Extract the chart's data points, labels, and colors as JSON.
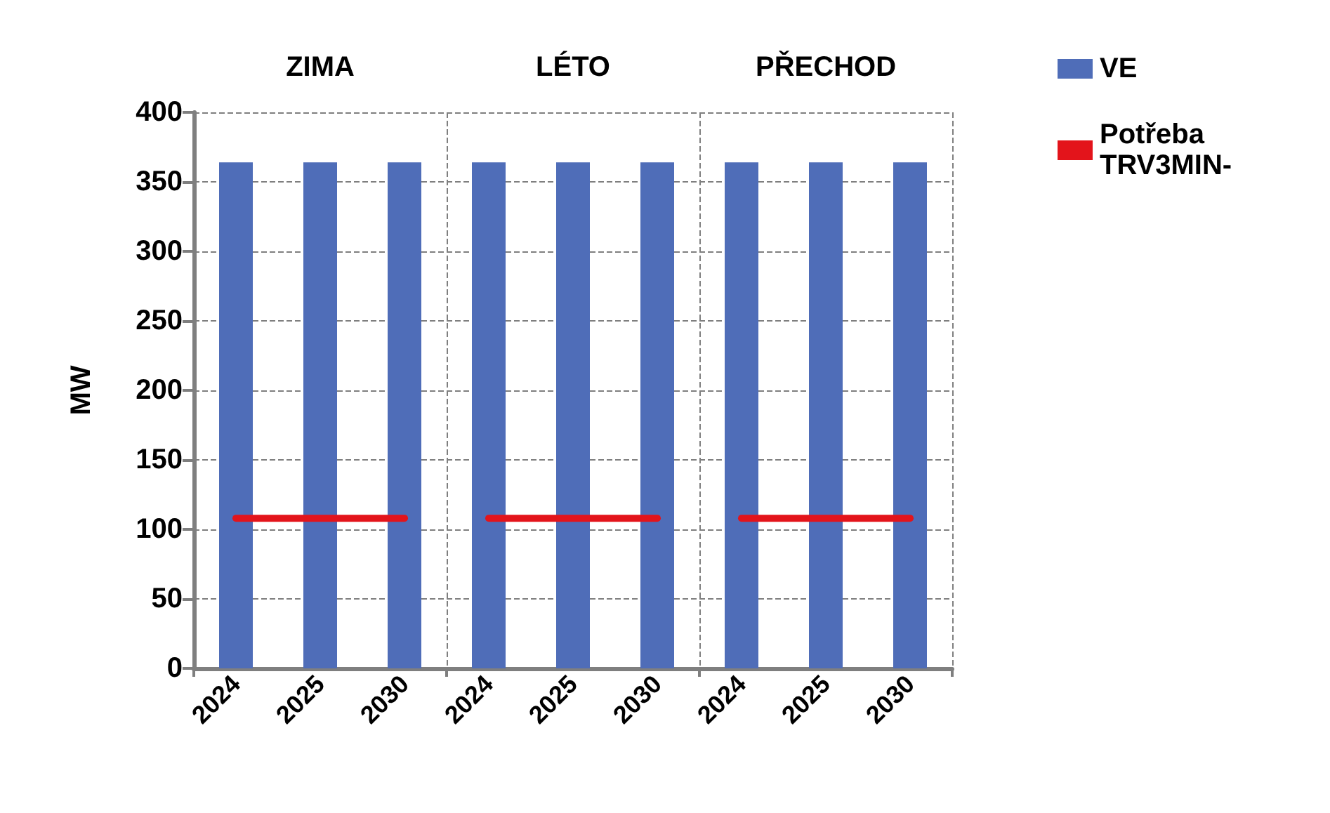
{
  "chart_data": {
    "type": "bar",
    "ylabel": "MW",
    "annotations": [
      "ZIMA",
      "LÉTO",
      "PŘECHOD"
    ],
    "categories": [
      "2024",
      "2025",
      "2030",
      "2024",
      "2025",
      "2030",
      "2024",
      "2025",
      "2030"
    ],
    "series": [
      {
        "name": "VE",
        "color": "#4f6db8",
        "values": [
          364,
          364,
          364,
          364,
          364,
          364,
          364,
          364,
          364
        ]
      },
      {
        "name": "Potřeba TRV3MIN-",
        "type": "line",
        "color": "#e3141b",
        "values": [
          108,
          108,
          108,
          108,
          108,
          108,
          108,
          108,
          108
        ]
      }
    ],
    "ylim": [
      0,
      400
    ],
    "yticks": [
      0,
      50,
      100,
      150,
      200,
      250,
      300,
      350,
      400
    ],
    "grid": true,
    "legend": "top right",
    "marker": "none"
  }
}
